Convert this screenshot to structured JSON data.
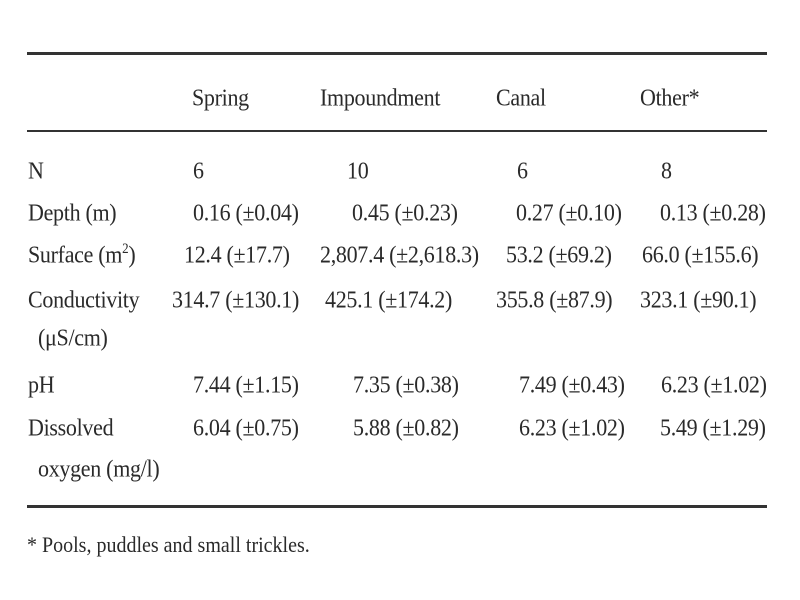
{
  "table": {
    "columns": [
      "Spring",
      "Impoundment",
      "Canal",
      "Other*"
    ],
    "rows": [
      {
        "label": "N",
        "values": [
          "6",
          "10",
          "6",
          "8"
        ]
      },
      {
        "label": "Depth (m)",
        "values": [
          "0.16 (±0.04)",
          "0.45 (±0.23)",
          "0.27 (±0.10)",
          "0.13 (±0.28)"
        ]
      },
      {
        "label_main": "Surface (m",
        "label_sup": "2",
        "label_end": ")",
        "values": [
          "12.4 (±17.7)",
          "2,807.4 (±2,618.3)",
          "53.2 (±69.2)",
          "66.0 (±155.6)"
        ]
      },
      {
        "label": "Conductivity",
        "label_line2": "(μS/cm)",
        "values": [
          "314.7 (±130.1)",
          "425.1 (±174.2)",
          "355.8 (±87.9)",
          "323.1 (±90.1)"
        ]
      },
      {
        "label": "pH",
        "values": [
          "7.44 (±1.15)",
          "7.35 (±0.38)",
          "7.49 (±0.43)",
          "6.23 (±1.02)"
        ]
      },
      {
        "label": "Dissolved",
        "label_line2": "oxygen (mg/l)",
        "values": [
          "6.04 (±0.75)",
          "5.88 (±0.82)",
          "6.23 (±1.02)",
          "5.49 (±1.29)"
        ]
      }
    ],
    "footnote": "* Pools, puddles and small trickles."
  }
}
